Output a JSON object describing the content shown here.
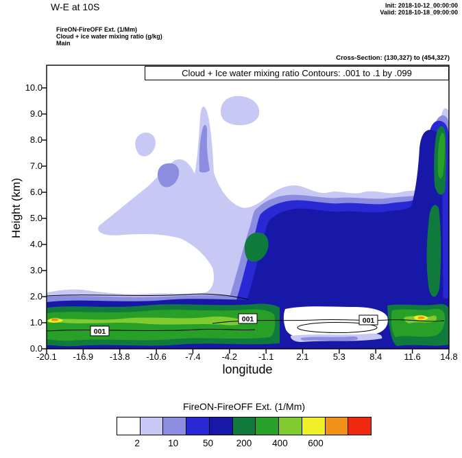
{
  "header": {
    "title": "W-E at 10S",
    "init": "Init: 2018-10-12_00:00:00",
    "valid": "Valid: 2018-10-18_09:00:00",
    "field_line1": "FireON-FireOFF Ext.  (1/Mm)",
    "field_line2": "Cloud + ice water mixing ratio  (g/kg)",
    "field_line3": "Main",
    "cross_section": "Cross-Section: (130,327) to (454,327)"
  },
  "plot": {
    "contour_note": "Cloud + Ice water mixing ratio Contours: .001 to .1 by .099",
    "contour_labels": [
      "001",
      "001",
      "001"
    ]
  },
  "axes": {
    "y": {
      "label": "Height (km)",
      "ticks": [
        "10.0",
        "9.0",
        "8.0",
        "7.0",
        "6.0",
        "5.0",
        "4.0",
        "3.0",
        "2.0",
        "1.0",
        "0.0"
      ]
    },
    "x": {
      "label": "longitude",
      "ticks": [
        "-20.1",
        "-16.9",
        "-13.8",
        "-10.6",
        "-7.4",
        "-4.2",
        "-1.1",
        "2.1",
        "5.3",
        "8.4",
        "11.6",
        "14.8"
      ]
    }
  },
  "colorbar": {
    "title": "FireON-FireOFF Ext.  (1/Mm)",
    "colors": [
      "#FFFFFF",
      "#C8C8F4",
      "#8C8CE0",
      "#2828D4",
      "#1818A8",
      "#107A3C",
      "#28A028",
      "#80CC30",
      "#F0F028",
      "#F09018",
      "#F02810"
    ],
    "tick_labels": [
      "2",
      "10",
      "50",
      "200",
      "400",
      "600"
    ],
    "tick_positions_pct": [
      8.1,
      22.2,
      35.9,
      50.0,
      64.1,
      78.1
    ]
  },
  "chart_data": {
    "type": "heatmap",
    "title": "Cloud + Ice water mixing ratio Contours: .001 to .1 by .099",
    "xlabel": "longitude",
    "ylabel": "Height (km)",
    "xlim": [
      -20.1,
      14.8
    ],
    "ylim": [
      0,
      10.9
    ],
    "x_ticks": [
      -20.1,
      -16.9,
      -13.8,
      -10.6,
      -7.4,
      -4.2,
      -1.1,
      2.1,
      5.3,
      8.4,
      11.6,
      14.8
    ],
    "y_ticks": [
      0,
      1,
      2,
      3,
      4,
      5,
      6,
      7,
      8,
      9,
      10
    ],
    "fill_variable": "FireON-FireOFF Ext. (1/Mm)",
    "fill_levels": [
      2,
      10,
      50,
      200,
      400,
      600
    ],
    "overlay_contours": {
      "variable": "Cloud + Ice water mixing ratio (g/kg)",
      "levels": [
        0.001,
        0.1
      ],
      "label_text": "001",
      "label_positions": [
        [
          -15.6,
          0.6
        ],
        [
          -3.9,
          1.1
        ],
        [
          6.6,
          1.05
        ]
      ]
    },
    "features": [
      {
        "region": "surface band 0.3-1.8 km across nearly all longitudes",
        "value_1_per_Mm": "50-600+, brightest green/yellow/orange streaks near 0.9-1.1 km on far left (-20 to -18) and near 10-12 longitude"
      },
      {
        "region": "broad elevated plume from -6 to 14.8 longitude, 1.5-6 km",
        "value_1_per_Mm": "50-400 (blue/dark-blue) with dark-green core near longitude -5.5 at 3.5-4.5 km"
      },
      {
        "region": "narrow column at right edge (14.5-14.8 longitude) up to ~9.5 km",
        "value_1_per_Mm": "200-600 with green core at 6.5-9 km"
      },
      {
        "region": "mid-level light plumes -15 to -2 longitude, 4.5-9.3 km (thin spike near -7 reaching 9.2 km; detached blobs near -12.5 at 7.5 km and -4.5 at 8.8 km)",
        "value_1_per_Mm": "2-50 (lavender/periwinkle)"
      },
      {
        "region": "clear notch 1 to 8 longitude below 1.2 km",
        "value_1_per_Mm": "< 2"
      }
    ],
    "legend_position": "bottom horizontal colorbar"
  }
}
